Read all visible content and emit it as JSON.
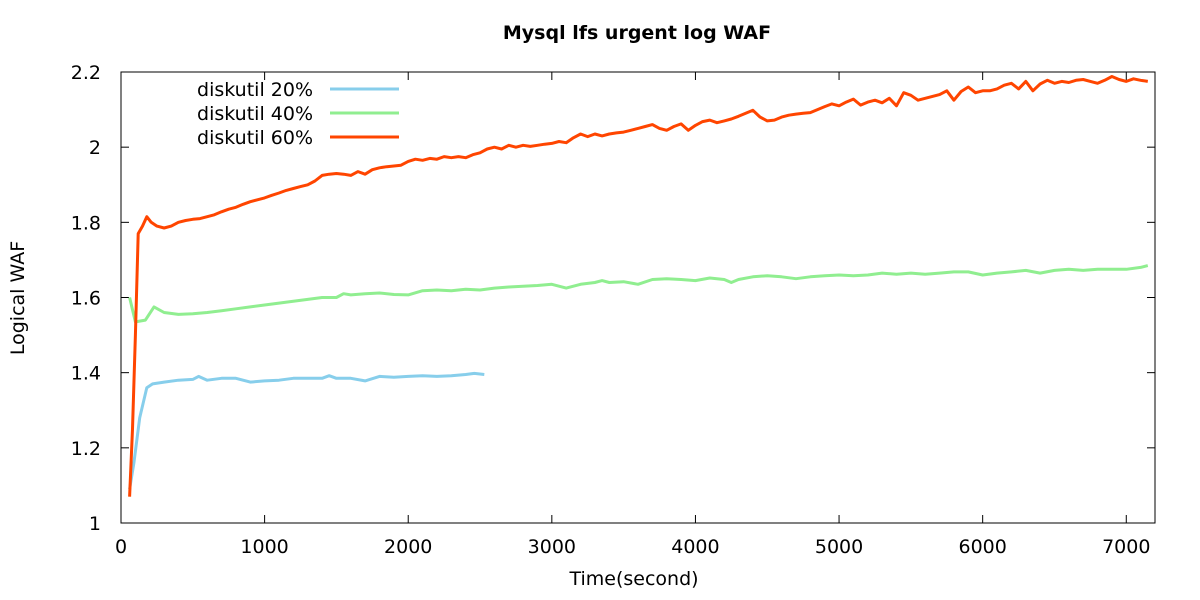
{
  "chart_data": {
    "type": "line",
    "title": "Mysql lfs urgent log WAF",
    "xlabel": "Time(second)",
    "ylabel": "Logical WAF",
    "xlim": [
      0,
      7200
    ],
    "ylim": [
      1,
      2.2
    ],
    "xticks": [
      0,
      1000,
      2000,
      3000,
      4000,
      5000,
      6000,
      7000
    ],
    "yticks": [
      1,
      1.2,
      1.4,
      1.6,
      1.8,
      2,
      2.2
    ],
    "xtick_labels": [
      "0",
      "1000",
      "2000",
      "3000",
      "4000",
      "5000",
      "6000",
      "7000"
    ],
    "ytick_labels": [
      "1",
      "1.2",
      "1.4",
      "1.6",
      "1.8",
      "2",
      "2.2"
    ],
    "grid": false,
    "legend_position": "top-left",
    "series": [
      {
        "name": "diskutil 20%",
        "color": "#87ceeb",
        "points": [
          [
            60,
            1.09
          ],
          [
            90,
            1.16
          ],
          [
            130,
            1.28
          ],
          [
            180,
            1.36
          ],
          [
            220,
            1.37
          ],
          [
            300,
            1.375
          ],
          [
            400,
            1.38
          ],
          [
            500,
            1.382
          ],
          [
            540,
            1.39
          ],
          [
            600,
            1.38
          ],
          [
            700,
            1.385
          ],
          [
            800,
            1.385
          ],
          [
            900,
            1.375
          ],
          [
            1000,
            1.378
          ],
          [
            1100,
            1.38
          ],
          [
            1200,
            1.385
          ],
          [
            1300,
            1.385
          ],
          [
            1400,
            1.385
          ],
          [
            1450,
            1.392
          ],
          [
            1500,
            1.385
          ],
          [
            1600,
            1.385
          ],
          [
            1700,
            1.378
          ],
          [
            1800,
            1.39
          ],
          [
            1900,
            1.388
          ],
          [
            2000,
            1.39
          ],
          [
            2100,
            1.392
          ],
          [
            2200,
            1.39
          ],
          [
            2300,
            1.392
          ],
          [
            2400,
            1.395
          ],
          [
            2460,
            1.398
          ],
          [
            2530,
            1.395
          ]
        ]
      },
      {
        "name": "diskutil 40%",
        "color": "#90ee90",
        "points": [
          [
            60,
            1.6
          ],
          [
            100,
            1.535
          ],
          [
            170,
            1.54
          ],
          [
            230,
            1.575
          ],
          [
            300,
            1.56
          ],
          [
            400,
            1.555
          ],
          [
            500,
            1.557
          ],
          [
            600,
            1.56
          ],
          [
            700,
            1.565
          ],
          [
            800,
            1.57
          ],
          [
            900,
            1.575
          ],
          [
            1000,
            1.58
          ],
          [
            1100,
            1.585
          ],
          [
            1200,
            1.59
          ],
          [
            1300,
            1.595
          ],
          [
            1400,
            1.6
          ],
          [
            1500,
            1.6
          ],
          [
            1550,
            1.61
          ],
          [
            1600,
            1.607
          ],
          [
            1700,
            1.61
          ],
          [
            1800,
            1.612
          ],
          [
            1900,
            1.608
          ],
          [
            2000,
            1.607
          ],
          [
            2100,
            1.618
          ],
          [
            2200,
            1.62
          ],
          [
            2300,
            1.618
          ],
          [
            2400,
            1.622
          ],
          [
            2500,
            1.62
          ],
          [
            2600,
            1.625
          ],
          [
            2700,
            1.628
          ],
          [
            2800,
            1.63
          ],
          [
            2900,
            1.632
          ],
          [
            3000,
            1.635
          ],
          [
            3100,
            1.625
          ],
          [
            3200,
            1.635
          ],
          [
            3300,
            1.64
          ],
          [
            3350,
            1.645
          ],
          [
            3400,
            1.64
          ],
          [
            3500,
            1.642
          ],
          [
            3600,
            1.635
          ],
          [
            3700,
            1.648
          ],
          [
            3800,
            1.65
          ],
          [
            3900,
            1.648
          ],
          [
            4000,
            1.645
          ],
          [
            4100,
            1.652
          ],
          [
            4200,
            1.648
          ],
          [
            4250,
            1.64
          ],
          [
            4300,
            1.648
          ],
          [
            4400,
            1.655
          ],
          [
            4500,
            1.658
          ],
          [
            4600,
            1.655
          ],
          [
            4700,
            1.65
          ],
          [
            4800,
            1.655
          ],
          [
            4900,
            1.658
          ],
          [
            5000,
            1.66
          ],
          [
            5100,
            1.658
          ],
          [
            5200,
            1.66
          ],
          [
            5300,
            1.665
          ],
          [
            5400,
            1.662
          ],
          [
            5500,
            1.665
          ],
          [
            5600,
            1.662
          ],
          [
            5700,
            1.665
          ],
          [
            5800,
            1.668
          ],
          [
            5900,
            1.668
          ],
          [
            6000,
            1.66
          ],
          [
            6100,
            1.665
          ],
          [
            6200,
            1.668
          ],
          [
            6300,
            1.672
          ],
          [
            6400,
            1.665
          ],
          [
            6500,
            1.672
          ],
          [
            6600,
            1.675
          ],
          [
            6700,
            1.672
          ],
          [
            6800,
            1.675
          ],
          [
            6900,
            1.675
          ],
          [
            7000,
            1.675
          ],
          [
            7100,
            1.68
          ],
          [
            7150,
            1.685
          ]
        ]
      },
      {
        "name": "diskutil 60%",
        "color": "#ff4500",
        "points": [
          [
            60,
            1.07
          ],
          [
            80,
            1.25
          ],
          [
            100,
            1.5
          ],
          [
            120,
            1.77
          ],
          [
            150,
            1.79
          ],
          [
            180,
            1.815
          ],
          [
            210,
            1.8
          ],
          [
            250,
            1.79
          ],
          [
            300,
            1.785
          ],
          [
            350,
            1.79
          ],
          [
            400,
            1.8
          ],
          [
            450,
            1.805
          ],
          [
            500,
            1.808
          ],
          [
            550,
            1.81
          ],
          [
            600,
            1.815
          ],
          [
            650,
            1.82
          ],
          [
            700,
            1.828
          ],
          [
            750,
            1.835
          ],
          [
            800,
            1.84
          ],
          [
            850,
            1.848
          ],
          [
            900,
            1.855
          ],
          [
            950,
            1.86
          ],
          [
            1000,
            1.865
          ],
          [
            1050,
            1.872
          ],
          [
            1100,
            1.878
          ],
          [
            1150,
            1.885
          ],
          [
            1200,
            1.89
          ],
          [
            1250,
            1.895
          ],
          [
            1300,
            1.9
          ],
          [
            1350,
            1.91
          ],
          [
            1400,
            1.925
          ],
          [
            1450,
            1.928
          ],
          [
            1500,
            1.93
          ],
          [
            1550,
            1.928
          ],
          [
            1600,
            1.925
          ],
          [
            1650,
            1.935
          ],
          [
            1700,
            1.928
          ],
          [
            1750,
            1.94
          ],
          [
            1800,
            1.945
          ],
          [
            1850,
            1.948
          ],
          [
            1900,
            1.95
          ],
          [
            1950,
            1.952
          ],
          [
            2000,
            1.962
          ],
          [
            2050,
            1.968
          ],
          [
            2100,
            1.965
          ],
          [
            2150,
            1.97
          ],
          [
            2200,
            1.968
          ],
          [
            2250,
            1.975
          ],
          [
            2300,
            1.972
          ],
          [
            2350,
            1.975
          ],
          [
            2400,
            1.972
          ],
          [
            2450,
            1.98
          ],
          [
            2500,
            1.985
          ],
          [
            2550,
            1.995
          ],
          [
            2600,
            2
          ],
          [
            2650,
            1.995
          ],
          [
            2700,
            2.005
          ],
          [
            2750,
            2
          ],
          [
            2800,
            2.005
          ],
          [
            2850,
            2.002
          ],
          [
            2900,
            2.005
          ],
          [
            2950,
            2.008
          ],
          [
            3000,
            2.01
          ],
          [
            3050,
            2.015
          ],
          [
            3100,
            2.012
          ],
          [
            3150,
            2.025
          ],
          [
            3200,
            2.035
          ],
          [
            3250,
            2.028
          ],
          [
            3300,
            2.035
          ],
          [
            3350,
            2.03
          ],
          [
            3400,
            2.035
          ],
          [
            3450,
            2.038
          ],
          [
            3500,
            2.04
          ],
          [
            3550,
            2.045
          ],
          [
            3600,
            2.05
          ],
          [
            3650,
            2.055
          ],
          [
            3700,
            2.06
          ],
          [
            3750,
            2.05
          ],
          [
            3800,
            2.045
          ],
          [
            3850,
            2.055
          ],
          [
            3900,
            2.062
          ],
          [
            3950,
            2.045
          ],
          [
            4000,
            2.058
          ],
          [
            4050,
            2.068
          ],
          [
            4100,
            2.072
          ],
          [
            4150,
            2.065
          ],
          [
            4200,
            2.07
          ],
          [
            4250,
            2.075
          ],
          [
            4300,
            2.082
          ],
          [
            4350,
            2.09
          ],
          [
            4400,
            2.098
          ],
          [
            4450,
            2.08
          ],
          [
            4500,
            2.07
          ],
          [
            4550,
            2.072
          ],
          [
            4600,
            2.08
          ],
          [
            4650,
            2.085
          ],
          [
            4700,
            2.088
          ],
          [
            4750,
            2.09
          ],
          [
            4800,
            2.092
          ],
          [
            4850,
            2.1
          ],
          [
            4900,
            2.108
          ],
          [
            4950,
            2.115
          ],
          [
            5000,
            2.11
          ],
          [
            5050,
            2.12
          ],
          [
            5100,
            2.128
          ],
          [
            5150,
            2.112
          ],
          [
            5200,
            2.12
          ],
          [
            5250,
            2.125
          ],
          [
            5300,
            2.118
          ],
          [
            5350,
            2.13
          ],
          [
            5400,
            2.11
          ],
          [
            5450,
            2.145
          ],
          [
            5500,
            2.138
          ],
          [
            5550,
            2.125
          ],
          [
            5600,
            2.13
          ],
          [
            5650,
            2.135
          ],
          [
            5700,
            2.14
          ],
          [
            5750,
            2.15
          ],
          [
            5800,
            2.125
          ],
          [
            5850,
            2.148
          ],
          [
            5900,
            2.16
          ],
          [
            5950,
            2.145
          ],
          [
            6000,
            2.15
          ],
          [
            6050,
            2.15
          ],
          [
            6100,
            2.155
          ],
          [
            6150,
            2.165
          ],
          [
            6200,
            2.17
          ],
          [
            6250,
            2.155
          ],
          [
            6300,
            2.175
          ],
          [
            6350,
            2.15
          ],
          [
            6400,
            2.168
          ],
          [
            6450,
            2.178
          ],
          [
            6500,
            2.17
          ],
          [
            6550,
            2.175
          ],
          [
            6600,
            2.172
          ],
          [
            6650,
            2.178
          ],
          [
            6700,
            2.18
          ],
          [
            6750,
            2.175
          ],
          [
            6800,
            2.17
          ],
          [
            6850,
            2.178
          ],
          [
            6900,
            2.188
          ],
          [
            6950,
            2.18
          ],
          [
            7000,
            2.175
          ],
          [
            7050,
            2.182
          ],
          [
            7100,
            2.178
          ],
          [
            7150,
            2.175
          ]
        ]
      }
    ]
  }
}
